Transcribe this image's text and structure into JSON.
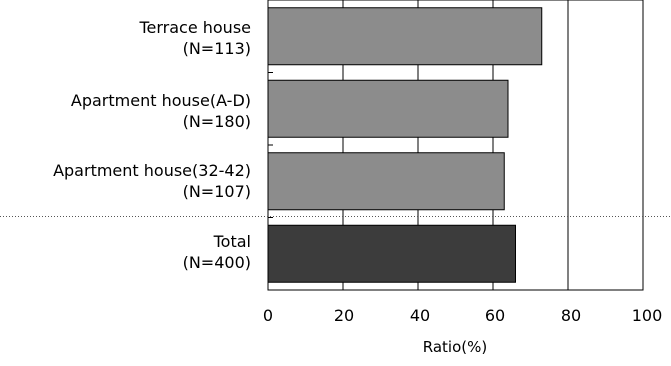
{
  "chart_data": {
    "type": "bar",
    "orientation": "horizontal",
    "categories": [
      [
        "Terrace house",
        "(N=113)"
      ],
      [
        "Apartment house(A-D)",
        "(N=180)"
      ],
      [
        "Apartment house(32-42)",
        "(N=107)"
      ],
      [
        "Total",
        "(N=400)"
      ]
    ],
    "values": [
      73,
      64,
      63,
      66
    ],
    "xlabel": "Ratio(%)",
    "xlim": [
      0,
      100
    ],
    "xticks": [
      "0",
      "20",
      "40",
      "60",
      "80",
      "100"
    ],
    "grid": true,
    "colors": {
      "bar": "#8c8c8c",
      "total_bar": "#3c3c3c",
      "outline": "#000000",
      "grid": "#000000",
      "separator": "#555555"
    }
  }
}
